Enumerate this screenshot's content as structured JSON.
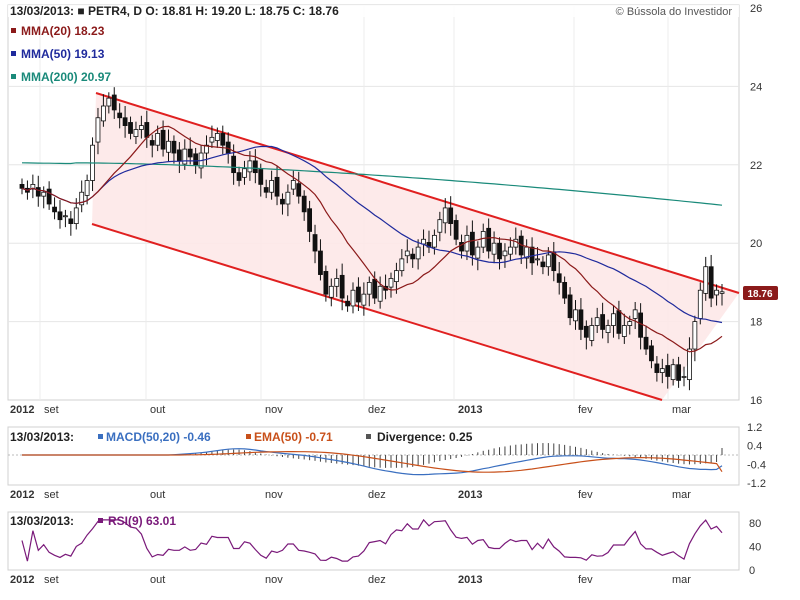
{
  "header": {
    "main": "13/03/2013:  ■ PETR4, D O: 18.81  H: 19.20  L: 18.75  C: 18.76",
    "copyright": "© Bússola do Investidor",
    "ma20": "MMA(20) 18.23",
    "ma50": "MMA(50) 19.13",
    "ma200": "MMA(200) 20.97",
    "last_price": "18.76"
  },
  "macd_header": {
    "date": "13/03/2013:",
    "macd": "MACD(50,20) -0.46",
    "ema": "EMA(50) -0.71",
    "div": "Divergence: 0.25"
  },
  "rsi_header": {
    "date": "13/03/2013:",
    "rsi": "RSI(9) 63.01"
  },
  "colors": {
    "ma20": "#8b1a1a",
    "ma50": "#1f2a9c",
    "ma200": "#1a8a7a",
    "channel": "#e02020",
    "channel_fill": "#fde8e8",
    "macd": "#3a6fc0",
    "ema": "#c8501a",
    "rsi": "#7a1a7a",
    "price_tag": "#8b1a1a"
  },
  "chart_data": [
    {
      "type": "candlestick",
      "title": "PETR4, D",
      "x_axis_labels": [
        "2012",
        "set",
        "out",
        "nov",
        "dez",
        "2013",
        "fev",
        "mar"
      ],
      "y_ticks": [
        "16",
        "18",
        "20",
        "22",
        "24",
        "26"
      ],
      "ylim": [
        16,
        26
      ],
      "ohlc_summary": {
        "date": "13/03/2013",
        "open": 18.81,
        "high": 19.2,
        "low": 18.75,
        "close": 18.76
      },
      "close_series": [
        21.4,
        21.3,
        21.5,
        21.2,
        21.3,
        21.0,
        20.8,
        20.6,
        20.7,
        20.5,
        20.9,
        21.3,
        21.6,
        22.5,
        23.2,
        23.5,
        23.7,
        23.4,
        23.2,
        23.0,
        22.8,
        22.9,
        23.0,
        22.7,
        22.5,
        22.8,
        22.4,
        22.6,
        22.3,
        22.1,
        22.4,
        22.2,
        22.0,
        22.3,
        22.5,
        22.7,
        22.8,
        22.5,
        22.3,
        21.8,
        21.6,
        21.9,
        22.1,
        21.8,
        21.5,
        21.3,
        21.6,
        21.2,
        21.0,
        21.3,
        21.6,
        21.2,
        20.8,
        20.3,
        19.8,
        19.2,
        18.7,
        18.9,
        19.1,
        18.6,
        18.4,
        18.8,
        18.5,
        18.7,
        19.0,
        18.6,
        18.9,
        18.8,
        19.1,
        19.3,
        19.6,
        19.8,
        19.6,
        19.9,
        20.1,
        19.9,
        20.2,
        20.6,
        20.9,
        20.5,
        20.1,
        19.8,
        20.2,
        19.7,
        19.9,
        20.3,
        19.8,
        20.0,
        19.6,
        19.8,
        19.9,
        20.1,
        19.7,
        19.9,
        19.5,
        19.6,
        19.4,
        19.7,
        19.3,
        19.0,
        18.6,
        18.1,
        18.3,
        17.8,
        17.6,
        17.9,
        18.1,
        17.8,
        17.9,
        18.2,
        17.7,
        17.9,
        18.0,
        18.3,
        17.6,
        17.3,
        17.0,
        16.7,
        16.8,
        16.6,
        16.9,
        16.5,
        16.6,
        17.3,
        18.0,
        18.8,
        19.4,
        18.6,
        18.8,
        18.76
      ],
      "series": [
        {
          "name": "MMA(20)",
          "last": 18.23
        },
        {
          "name": "MMA(50)",
          "last": 19.13
        },
        {
          "name": "MMA(200)",
          "last": 20.97
        }
      ]
    },
    {
      "type": "macd",
      "y_ticks": [
        "1.2",
        "0.4",
        "-0.4",
        "-1.2"
      ],
      "ylim": [
        -1.2,
        1.2
      ],
      "series": [
        {
          "name": "MACD(50,20)",
          "last": -0.46
        },
        {
          "name": "EMA(50)",
          "last": -0.71
        },
        {
          "name": "Divergence",
          "last": 0.25
        }
      ]
    },
    {
      "type": "line",
      "y_ticks": [
        "80",
        "40",
        "0"
      ],
      "ylim": [
        0,
        90
      ],
      "series": [
        {
          "name": "RSI(9)",
          "last": 63.01
        }
      ]
    }
  ]
}
